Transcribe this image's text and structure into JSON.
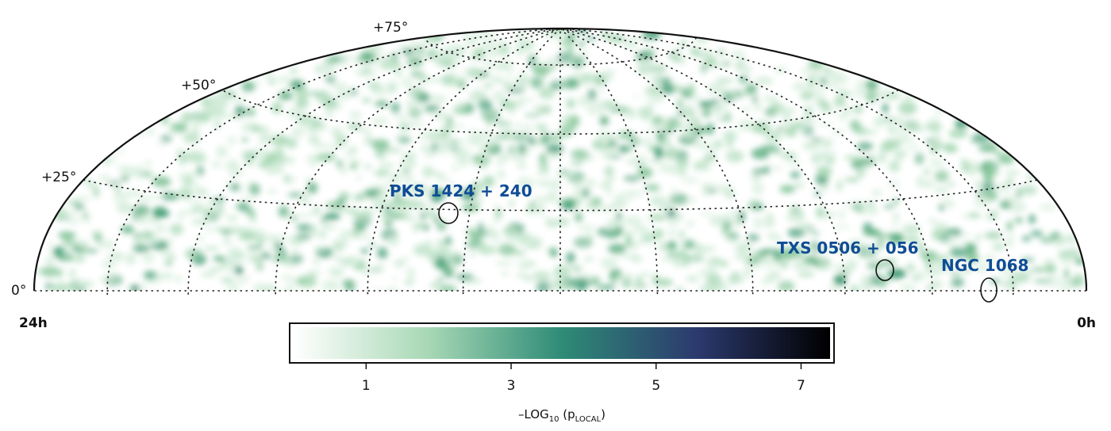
{
  "chart_data": {
    "type": "heatmap",
    "projection": "hammer-aitoff",
    "declination_ticks": [
      "0°",
      "+25°",
      "+50°",
      "+75°"
    ],
    "declination_values": [
      0,
      25,
      50,
      75
    ],
    "ra_labels": {
      "left": "24h",
      "right": "0h"
    },
    "sources": [
      {
        "name": "PKS 1424 + 240",
        "ra_hours": 14.45,
        "dec_deg": 23.8
      },
      {
        "name": "TXS 0506 + 056",
        "ra_hours": 5.15,
        "dec_deg": 5.7
      },
      {
        "name": "NGC 1068",
        "ra_hours": 2.7,
        "dec_deg": -0.01
      }
    ],
    "colorbar": {
      "ticks": [
        "1",
        "3",
        "5",
        "7"
      ],
      "tick_values": [
        1,
        3,
        5,
        7
      ],
      "range": [
        0,
        7.4
      ],
      "label_main": "–LOG",
      "label_sub10": "10",
      "label_open": " (p",
      "label_sub": "LOCAL",
      "label_close": ")",
      "colors": [
        "#ffffff",
        "#a8d8b5",
        "#2e8b76",
        "#2c3a6e",
        "#000000"
      ]
    }
  }
}
